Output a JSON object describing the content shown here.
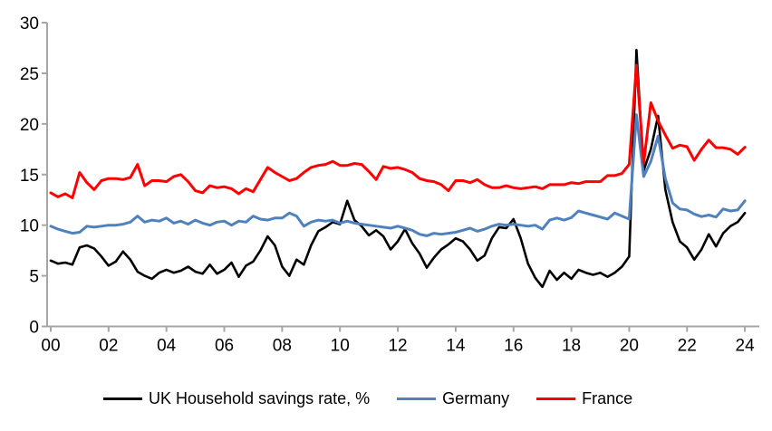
{
  "chart_data": {
    "type": "line",
    "title": "",
    "xlabel": "",
    "ylabel": "",
    "x_unit": "year (quarterly observations, 2000Q1 - 2024Q1)",
    "x_start": 2000.0,
    "x_step": 0.25,
    "ylim": [
      0,
      30
    ],
    "y_ticks": [
      0,
      5,
      10,
      15,
      20,
      25,
      30
    ],
    "x_tick_years": [
      2000,
      2002,
      2004,
      2006,
      2008,
      2010,
      2012,
      2014,
      2016,
      2018,
      2020,
      2022,
      2024
    ],
    "x_tick_labels": [
      "00",
      "02",
      "04",
      "06",
      "08",
      "10",
      "12",
      "14",
      "16",
      "18",
      "20",
      "22",
      "24"
    ],
    "grid": false,
    "legend_position": "bottom",
    "axis_color": "#a6a6a6",
    "series": [
      {
        "name": "UK Household savings rate, %",
        "color": "#000000",
        "values": [
          6.5,
          6.2,
          6.3,
          6.1,
          7.8,
          8.0,
          7.7,
          6.9,
          6.0,
          6.4,
          7.4,
          6.6,
          5.4,
          5.0,
          4.7,
          5.3,
          5.6,
          5.3,
          5.5,
          5.9,
          5.4,
          5.2,
          6.1,
          5.2,
          5.6,
          6.3,
          4.9,
          6.0,
          6.4,
          7.5,
          8.9,
          8.0,
          5.9,
          5.0,
          6.6,
          6.1,
          8.0,
          9.4,
          9.8,
          10.3,
          10.1,
          12.4,
          10.5,
          9.9,
          9.0,
          9.5,
          8.9,
          7.6,
          8.4,
          9.6,
          8.2,
          7.2,
          5.8,
          6.8,
          7.6,
          8.1,
          8.7,
          8.4,
          7.6,
          6.5,
          7.0,
          8.7,
          9.8,
          9.7,
          10.6,
          8.7,
          6.2,
          4.8,
          3.9,
          5.5,
          4.6,
          5.3,
          4.7,
          5.6,
          5.3,
          5.1,
          5.3,
          4.9,
          5.3,
          5.9,
          6.9,
          27.3,
          15.4,
          17.5,
          20.8,
          13.5,
          10.3,
          8.4,
          7.8,
          6.6,
          7.6,
          9.1,
          7.9,
          9.2,
          9.9,
          10.3,
          11.2
        ]
      },
      {
        "name": "Germany",
        "color": "#4f81bd",
        "values": [
          9.9,
          9.6,
          9.4,
          9.2,
          9.3,
          9.9,
          9.8,
          9.9,
          10.0,
          10.0,
          10.1,
          10.3,
          10.9,
          10.3,
          10.5,
          10.4,
          10.7,
          10.2,
          10.4,
          10.1,
          10.5,
          10.2,
          10.0,
          10.3,
          10.4,
          10.0,
          10.4,
          10.3,
          10.9,
          10.6,
          10.5,
          10.7,
          10.7,
          11.2,
          10.9,
          9.9,
          10.3,
          10.5,
          10.4,
          10.5,
          10.2,
          10.4,
          10.2,
          10.1,
          10.0,
          9.9,
          9.8,
          9.7,
          9.9,
          9.7,
          9.5,
          9.1,
          8.95,
          9.2,
          9.1,
          9.2,
          9.3,
          9.5,
          9.7,
          9.4,
          9.6,
          9.9,
          10.1,
          10.0,
          10.1,
          10.0,
          9.9,
          10.0,
          9.6,
          10.5,
          10.7,
          10.5,
          10.75,
          11.4,
          11.2,
          11.0,
          10.8,
          10.6,
          11.2,
          10.9,
          10.6,
          20.9,
          14.8,
          16.3,
          18.8,
          14.6,
          12.2,
          11.6,
          11.5,
          11.1,
          10.85,
          11.0,
          10.8,
          11.6,
          11.4,
          11.5,
          12.4
        ]
      },
      {
        "name": "France",
        "color": "#ff0000",
        "values": [
          13.2,
          12.8,
          13.1,
          12.7,
          15.2,
          14.2,
          13.5,
          14.4,
          14.6,
          14.6,
          14.5,
          14.7,
          16.0,
          13.9,
          14.4,
          14.4,
          14.3,
          14.8,
          15.0,
          14.3,
          13.4,
          13.2,
          13.9,
          13.7,
          13.8,
          13.6,
          13.1,
          13.6,
          13.3,
          14.5,
          15.7,
          15.2,
          14.8,
          14.4,
          14.6,
          15.2,
          15.7,
          15.9,
          16.0,
          16.3,
          15.9,
          15.9,
          16.1,
          16.0,
          15.3,
          14.5,
          15.8,
          15.6,
          15.7,
          15.5,
          15.2,
          14.6,
          14.4,
          14.3,
          14.0,
          13.4,
          14.4,
          14.4,
          14.2,
          14.5,
          14.0,
          13.7,
          13.7,
          13.9,
          13.7,
          13.6,
          13.7,
          13.8,
          13.6,
          14.0,
          14.0,
          14.0,
          14.2,
          14.1,
          14.3,
          14.3,
          14.3,
          14.9,
          14.9,
          15.1,
          16.0,
          25.8,
          16.1,
          22.1,
          20.3,
          18.9,
          17.6,
          17.9,
          17.75,
          16.4,
          17.5,
          18.4,
          17.65,
          17.65,
          17.5,
          17.0,
          17.7
        ]
      }
    ]
  },
  "legend": {
    "items": [
      "UK Household savings rate, %",
      "Germany",
      "France"
    ]
  }
}
